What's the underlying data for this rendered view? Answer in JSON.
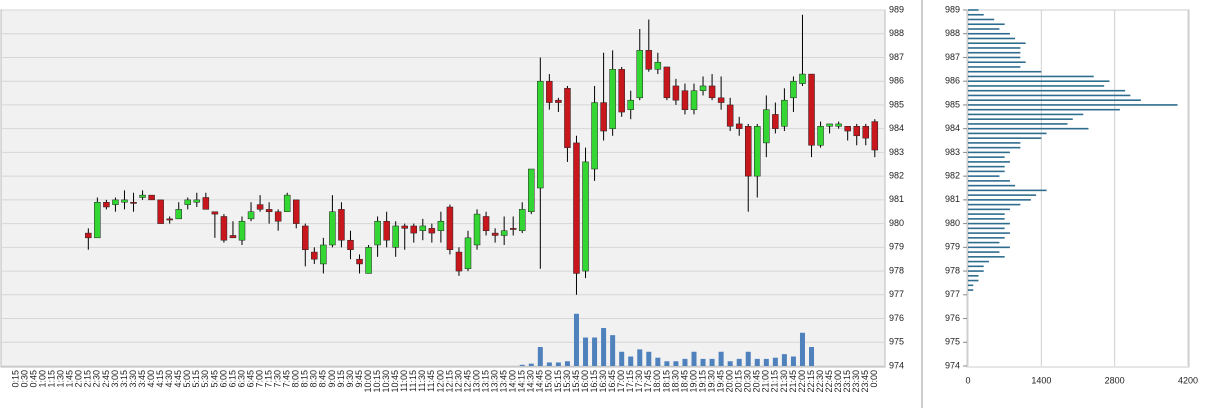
{
  "chart_data": [
    {
      "type": "candlestick",
      "categories": [
        "0:15",
        "0:30",
        "0:45",
        "1:00",
        "1:15",
        "1:30",
        "1:45",
        "2:00",
        "2:15",
        "2:30",
        "2:45",
        "3:00",
        "3:15",
        "3:30",
        "3:45",
        "4:00",
        "4:15",
        "4:30",
        "4:45",
        "5:00",
        "5:15",
        "5:30",
        "5:45",
        "6:00",
        "6:15",
        "6:30",
        "6:45",
        "7:00",
        "7:15",
        "7:30",
        "7:45",
        "8:00",
        "8:15",
        "8:30",
        "8:45",
        "9:00",
        "9:15",
        "9:30",
        "9:45",
        "10:00",
        "10:15",
        "10:30",
        "10:45",
        "11:00",
        "11:15",
        "11:30",
        "11:45",
        "12:00",
        "12:15",
        "12:30",
        "12:45",
        "13:00",
        "13:15",
        "13:30",
        "13:45",
        "14:00",
        "14:15",
        "14:30",
        "14:45",
        "15:00",
        "15:15",
        "15:30",
        "15:45",
        "16:00",
        "16:15",
        "16:30",
        "16:45",
        "17:00",
        "17:15",
        "17:30",
        "17:45",
        "18:00",
        "18:15",
        "18:30",
        "18:45",
        "19:00",
        "19:15",
        "19:30",
        "19:45",
        "20:00",
        "20:15",
        "20:30",
        "20:45",
        "21:00",
        "21:15",
        "21:30",
        "21:45",
        "22:00",
        "22:15",
        "22:30",
        "22:45",
        "23:00",
        "23:15",
        "23:30",
        "23:45",
        "0:00"
      ],
      "open": [
        null,
        null,
        null,
        null,
        null,
        null,
        null,
        null,
        979.6,
        979.4,
        980.9,
        980.8,
        980.9,
        980.9,
        981.1,
        981.2,
        981.0,
        980.2,
        980.2,
        980.8,
        980.9,
        981.1,
        980.5,
        980.3,
        979.5,
        979.3,
        980.2,
        980.8,
        980.6,
        980.5,
        980.5,
        981.0,
        979.9,
        978.8,
        978.3,
        979.1,
        980.6,
        979.3,
        978.5,
        977.9,
        979.1,
        980.1,
        979.0,
        979.9,
        979.9,
        979.7,
        979.8,
        979.7,
        980.7,
        978.8,
        978.1,
        979.1,
        980.3,
        979.6,
        979.5,
        979.8,
        979.7,
        980.5,
        981.5,
        986.0,
        985.2,
        985.7,
        983.4,
        978.0,
        982.3,
        985.1,
        984.0,
        986.5,
        984.8,
        985.3,
        987.3,
        986.5,
        986.6,
        985.8,
        985.6,
        984.8,
        985.6,
        985.8,
        985.3,
        985.0,
        984.2,
        984.1,
        982.0,
        983.4,
        984.6,
        984.1,
        985.3,
        985.9,
        986.3,
        983.3,
        984.1,
        984.1,
        984.1,
        984.1,
        984.1,
        984.3
      ],
      "high": [
        null,
        null,
        null,
        null,
        null,
        null,
        null,
        null,
        979.8,
        981.1,
        981.0,
        981.1,
        981.4,
        981.3,
        981.4,
        981.2,
        981.0,
        980.3,
        980.9,
        981.1,
        981.3,
        981.3,
        980.5,
        980.4,
        980.1,
        980.3,
        980.9,
        981.2,
        980.9,
        980.6,
        981.3,
        981.0,
        980.0,
        979.0,
        979.4,
        981.2,
        980.9,
        979.7,
        978.7,
        979.1,
        980.3,
        980.5,
        980.1,
        980.0,
        980.0,
        980.2,
        980.0,
        980.5,
        980.8,
        979.0,
        979.7,
        980.6,
        980.5,
        979.8,
        980.3,
        980.3,
        980.9,
        982.3,
        987.0,
        986.3,
        985.3,
        985.8,
        983.7,
        983.2,
        985.8,
        987.2,
        987.3,
        986.6,
        985.6,
        988.2,
        988.6,
        987.2,
        986.6,
        986.1,
        985.9,
        985.9,
        986.2,
        986.3,
        986.2,
        985.3,
        984.5,
        984.2,
        984.2,
        985.4,
        985.1,
        985.7,
        986.2,
        988.8,
        986.3,
        984.3,
        984.2,
        984.3,
        984.1,
        984.2,
        984.2,
        984.4
      ],
      "low": [
        null,
        null,
        null,
        null,
        null,
        null,
        null,
        null,
        978.9,
        979.4,
        980.6,
        980.5,
        980.6,
        980.5,
        981.0,
        981.0,
        980.0,
        980.0,
        980.2,
        980.6,
        980.7,
        980.6,
        979.4,
        979.2,
        979.4,
        979.1,
        980.1,
        980.5,
        980.0,
        979.7,
        980.5,
        979.8,
        978.2,
        978.3,
        977.9,
        979.0,
        979.0,
        978.5,
        977.9,
        977.9,
        978.6,
        979.0,
        978.6,
        978.9,
        979.2,
        979.3,
        979.2,
        979.2,
        978.7,
        977.8,
        978.0,
        978.9,
        979.5,
        979.2,
        979.1,
        979.5,
        979.6,
        980.4,
        978.1,
        984.8,
        984.7,
        982.6,
        977.0,
        977.7,
        981.8,
        983.5,
        983.7,
        984.5,
        984.4,
        985.2,
        986.4,
        986.3,
        985.2,
        985.0,
        984.6,
        984.6,
        985.4,
        985.2,
        984.8,
        983.9,
        983.7,
        980.5,
        981.1,
        982.8,
        983.8,
        983.9,
        984.7,
        985.8,
        982.8,
        983.2,
        983.8,
        984.0,
        983.5,
        983.3,
        983.3,
        982.8
      ],
      "close": [
        null,
        null,
        null,
        null,
        null,
        null,
        null,
        null,
        979.4,
        980.9,
        980.7,
        981.0,
        981.0,
        980.85,
        981.2,
        981.0,
        980.0,
        980.15,
        980.6,
        981.0,
        981.0,
        980.6,
        980.4,
        979.3,
        979.4,
        980.1,
        980.5,
        980.6,
        980.5,
        980.1,
        981.2,
        980.0,
        978.9,
        978.5,
        979.1,
        980.5,
        979.3,
        978.9,
        978.3,
        979.0,
        980.1,
        979.3,
        979.9,
        979.8,
        979.6,
        979.9,
        979.6,
        980.1,
        978.9,
        978.0,
        979.4,
        980.4,
        979.7,
        979.5,
        979.7,
        979.75,
        980.6,
        982.3,
        986.0,
        985.1,
        985.1,
        983.2,
        977.9,
        982.6,
        985.1,
        983.9,
        986.5,
        984.7,
        985.2,
        987.3,
        986.5,
        986.8,
        985.3,
        985.2,
        984.8,
        985.6,
        985.8,
        985.3,
        985.1,
        984.1,
        984.0,
        982.0,
        984.1,
        984.8,
        984.0,
        985.2,
        986.0,
        986.3,
        983.3,
        984.1,
        984.2,
        984.2,
        983.9,
        983.7,
        983.6,
        983.1
      ],
      "volume": [
        null,
        null,
        null,
        null,
        null,
        null,
        null,
        null,
        0,
        0,
        0,
        0,
        0,
        0,
        0,
        0,
        0,
        0,
        0,
        0,
        0,
        0,
        0,
        0,
        0,
        0,
        0,
        0,
        0,
        0,
        0,
        0,
        0,
        0,
        0,
        0,
        0,
        0,
        0,
        0,
        0,
        0,
        0,
        0,
        0,
        0,
        0,
        0,
        0,
        0,
        0,
        0,
        0,
        0,
        0,
        0,
        0.05,
        0.1,
        0.8,
        0.15,
        0.15,
        0.2,
        2.2,
        1.2,
        1.2,
        1.6,
        1.3,
        0.6,
        0.4,
        0.7,
        0.6,
        0.35,
        0.2,
        0.2,
        0.3,
        0.6,
        0.3,
        0.3,
        0.6,
        0.2,
        0.3,
        0.6,
        0.3,
        0.3,
        0.35,
        0.5,
        0.4,
        1.4,
        0.8,
        0,
        0,
        0,
        0,
        0,
        0,
        0
      ],
      "volume_color": "#4f81bd",
      "y2lim": [
        0,
        15
      ],
      "up_color": "#33d633",
      "down_color": "#c8161d",
      "ylim": [
        974,
        989
      ],
      "yticks": [
        974,
        975,
        976,
        977,
        978,
        979,
        980,
        981,
        982,
        983,
        984,
        985,
        986,
        987,
        988,
        989
      ],
      "grid": true
    },
    {
      "type": "bar",
      "orientation": "horizontal",
      "y": [
        989.0,
        988.8,
        988.6,
        988.4,
        988.2,
        988.0,
        987.8,
        987.6,
        987.4,
        987.2,
        987.0,
        986.8,
        986.6,
        986.4,
        986.2,
        986.0,
        985.8,
        985.6,
        985.4,
        985.2,
        985.0,
        984.8,
        984.6,
        984.4,
        984.2,
        984.0,
        983.8,
        983.6,
        983.4,
        983.2,
        983.0,
        982.8,
        982.6,
        982.4,
        982.2,
        982.0,
        981.8,
        981.6,
        981.4,
        981.2,
        981.0,
        980.8,
        980.6,
        980.4,
        980.2,
        980.0,
        979.8,
        979.6,
        979.4,
        979.2,
        979.0,
        978.8,
        978.6,
        978.4,
        978.2,
        978.0,
        977.8,
        977.6,
        977.4,
        977.2
      ],
      "values": [
        200,
        300,
        500,
        700,
        600,
        800,
        900,
        1100,
        1000,
        1000,
        1000,
        1100,
        1000,
        1400,
        2400,
        2700,
        2600,
        3000,
        3100,
        3300,
        4000,
        2900,
        2200,
        2000,
        1900,
        2300,
        1500,
        1400,
        1000,
        1000,
        800,
        700,
        800,
        700,
        700,
        600,
        800,
        900,
        1500,
        1300,
        1200,
        1000,
        800,
        700,
        700,
        800,
        700,
        800,
        700,
        600,
        800,
        600,
        700,
        400,
        300,
        300,
        200,
        200,
        100,
        100
      ],
      "color": "#2f6d8f",
      "ylim": [
        974,
        989
      ],
      "yticks": [
        974,
        975,
        976,
        977,
        978,
        979,
        980,
        981,
        982,
        983,
        984,
        985,
        986,
        987,
        988,
        989
      ],
      "xlim": [
        0,
        4200
      ],
      "xticks": [
        0,
        1400,
        2800,
        4200
      ],
      "grid": true
    }
  ]
}
